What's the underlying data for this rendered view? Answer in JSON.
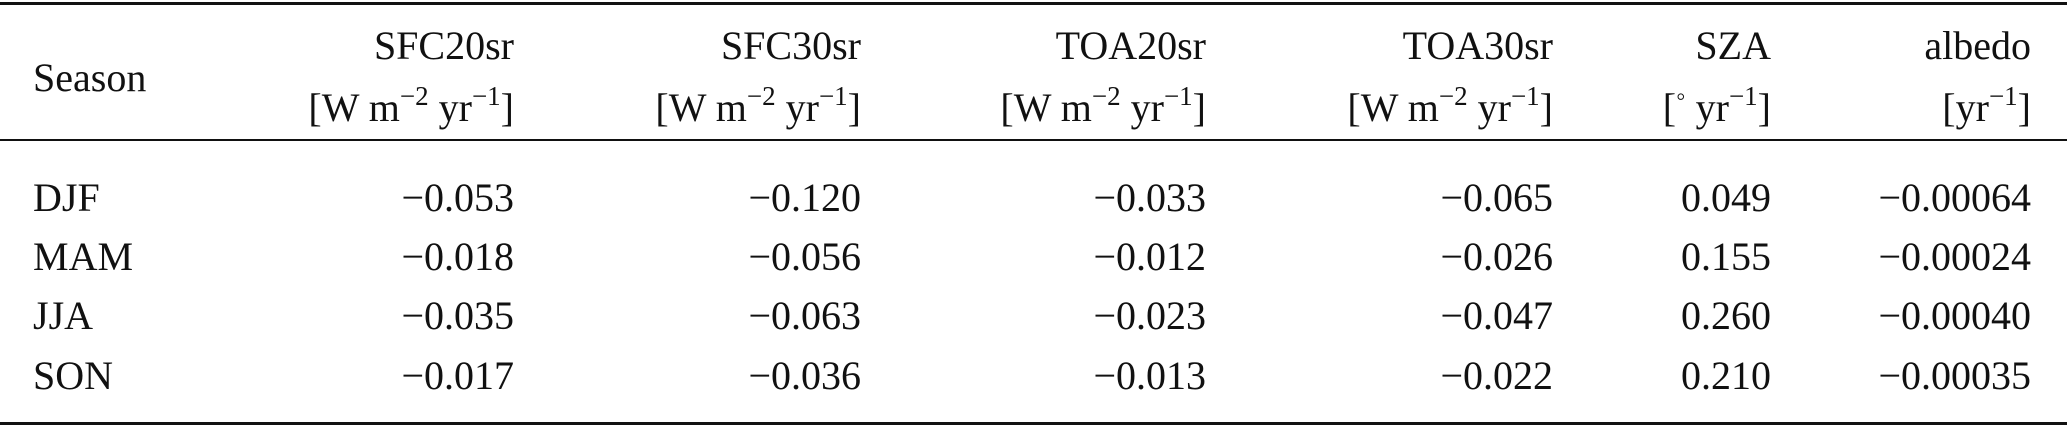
{
  "table": {
    "header": [
      {
        "name": "Season"
      },
      {
        "name": "SFC20sr",
        "unit": [
          {
            "text": "[W m"
          },
          {
            "sup": "−2"
          },
          {
            "text": " yr"
          },
          {
            "sup": "−1"
          },
          {
            "text": "]"
          }
        ]
      },
      {
        "name": "SFC30sr",
        "unit": [
          {
            "text": "[W m"
          },
          {
            "sup": "−2"
          },
          {
            "text": " yr"
          },
          {
            "sup": "−1"
          },
          {
            "text": "]"
          }
        ]
      },
      {
        "name": "TOA20sr",
        "unit": [
          {
            "text": "[W m"
          },
          {
            "sup": "−2"
          },
          {
            "text": " yr"
          },
          {
            "sup": "−1"
          },
          {
            "text": "]"
          }
        ]
      },
      {
        "name": "TOA30sr",
        "unit": [
          {
            "text": "[W m"
          },
          {
            "sup": "−2"
          },
          {
            "text": " yr"
          },
          {
            "sup": "−1"
          },
          {
            "text": "]"
          }
        ]
      },
      {
        "name": "SZA",
        "unit": [
          {
            "text": "["
          },
          {
            "sup": "◦"
          },
          {
            "text": " yr"
          },
          {
            "sup": "−1"
          },
          {
            "text": "]"
          }
        ]
      },
      {
        "name": "albedo",
        "unit": [
          {
            "text": "[yr"
          },
          {
            "sup": "−1"
          },
          {
            "text": "]"
          }
        ]
      }
    ],
    "rows": [
      [
        "DJF",
        "−0.053",
        "−0.120",
        "−0.033",
        "−0.065",
        "0.049",
        "−0.00064"
      ],
      [
        "MAM",
        "−0.018",
        "−0.056",
        "−0.012",
        "−0.026",
        "0.155",
        "−0.00024"
      ],
      [
        "JJA",
        "−0.035",
        "−0.063",
        "−0.023",
        "−0.047",
        "0.260",
        "−0.00040"
      ],
      [
        "SON",
        "−0.017",
        "−0.036",
        "−0.013",
        "−0.022",
        "0.210",
        "−0.00035"
      ]
    ]
  }
}
